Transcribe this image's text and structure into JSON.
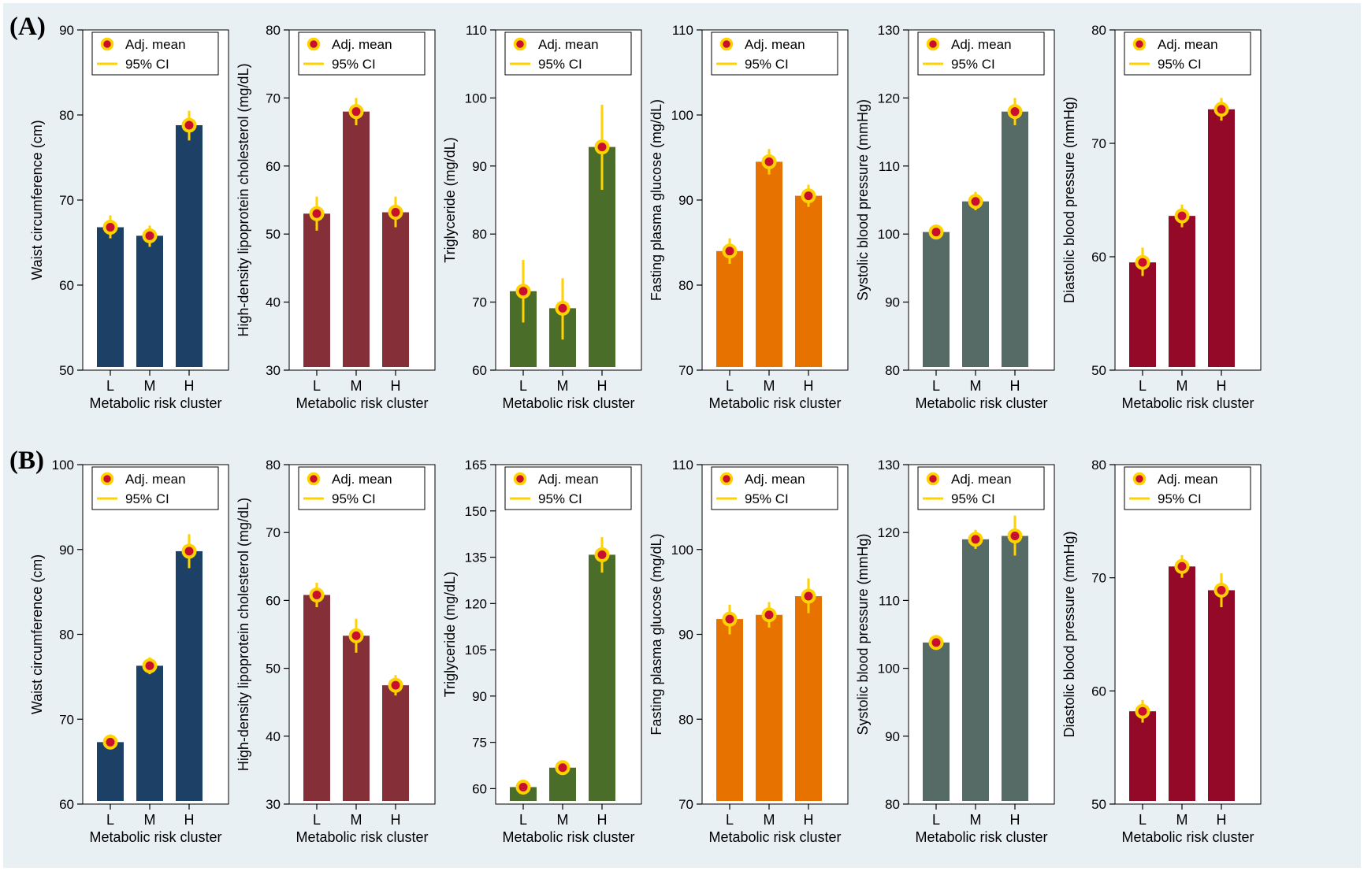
{
  "figure": {
    "colors": {
      "background": "#e9f0f3",
      "plot_background": "#ffffff",
      "ci_line": "#ffd200",
      "marker_fill": "#c8102e",
      "marker_ring": "#ffd200"
    }
  },
  "rows": [
    {
      "label": "(A)",
      "panels": [
        {
          "chart_data": {
            "type": "bar",
            "ylabel": "Waist circumference (cm)",
            "xlabel": "Metabolic risk cluster",
            "categories": [
              "L",
              "M",
              "H"
            ],
            "ylim": [
              50,
              90
            ],
            "yticks": [
              50,
              60,
              70,
              80,
              90
            ],
            "values": [
              66.8,
              65.8,
              78.8
            ],
            "ci_low": [
              65.5,
              64.5,
              77.0
            ],
            "ci_high": [
              68.2,
              67.0,
              80.5
            ],
            "color": "#1c4066",
            "legend": [
              "Adj. mean",
              "95% CI"
            ],
            "legend_position": "top-right",
            "grid": false
          }
        },
        {
          "chart_data": {
            "type": "bar",
            "ylabel": "High-density lipoprotein cholesterol (mg/dL)",
            "xlabel": "Metabolic risk cluster",
            "categories": [
              "L",
              "M",
              "H"
            ],
            "ylim": [
              30,
              80
            ],
            "yticks": [
              30,
              40,
              50,
              60,
              70,
              80
            ],
            "values": [
              53.0,
              68.0,
              53.2
            ],
            "ci_low": [
              50.5,
              66.0,
              51.0
            ],
            "ci_high": [
              55.5,
              70.0,
              55.5
            ],
            "color": "#852f38",
            "legend": [
              "Adj. mean",
              "95% CI"
            ],
            "legend_position": "top-right",
            "grid": false
          }
        },
        {
          "chart_data": {
            "type": "bar",
            "ylabel": "Triglyceride (mg/dL)",
            "xlabel": "Metabolic risk cluster",
            "categories": [
              "L",
              "M",
              "H"
            ],
            "ylim": [
              60,
              110
            ],
            "yticks": [
              60,
              70,
              80,
              90,
              100,
              110
            ],
            "values": [
              71.6,
              69.1,
              92.8
            ],
            "ci_low": [
              67.0,
              64.5,
              86.5
            ],
            "ci_high": [
              76.2,
              73.5,
              99.0
            ],
            "color": "#4b6d2a",
            "legend": [
              "Adj. mean",
              "95% CI"
            ],
            "legend_position": "top-right",
            "grid": false
          }
        },
        {
          "chart_data": {
            "type": "bar",
            "ylabel": "Fasting plasma glucose (mg/dL)",
            "xlabel": "Metabolic risk cluster",
            "categories": [
              "L",
              "M",
              "H"
            ],
            "ylim": [
              70,
              110
            ],
            "yticks": [
              70,
              80,
              90,
              100,
              110
            ],
            "values": [
              84.0,
              94.5,
              90.5
            ],
            "ci_low": [
              82.5,
              93.0,
              89.2
            ],
            "ci_high": [
              85.5,
              96.0,
              91.8
            ],
            "color": "#e87200",
            "legend": [
              "Adj. mean",
              "95% CI"
            ],
            "legend_position": "top-right",
            "grid": false
          }
        },
        {
          "chart_data": {
            "type": "bar",
            "ylabel": "Systolic blood pressure (mmHg)",
            "xlabel": "Metabolic risk cluster",
            "categories": [
              "L",
              "M",
              "H"
            ],
            "ylim": [
              80,
              130
            ],
            "yticks": [
              80,
              90,
              100,
              110,
              120,
              130
            ],
            "values": [
              100.3,
              104.8,
              118.0
            ],
            "ci_low": [
              99.3,
              103.5,
              116.0
            ],
            "ci_high": [
              101.3,
              106.2,
              120.0
            ],
            "color": "#566b66",
            "legend": [
              "Adj. mean",
              "95% CI"
            ],
            "legend_position": "top-right",
            "grid": false
          }
        },
        {
          "chart_data": {
            "type": "bar",
            "ylabel": "Diastolic blood pressure (mmHg)",
            "xlabel": "Metabolic risk cluster",
            "categories": [
              "L",
              "M",
              "H"
            ],
            "ylim": [
              50,
              80
            ],
            "yticks": [
              50,
              60,
              70,
              80
            ],
            "values": [
              59.5,
              63.6,
              73.0
            ],
            "ci_low": [
              58.3,
              62.6,
              72.0
            ],
            "ci_high": [
              60.8,
              64.6,
              74.0
            ],
            "color": "#940828",
            "legend": [
              "Adj. mean",
              "95% CI"
            ],
            "legend_position": "top-right",
            "grid": false
          }
        }
      ]
    },
    {
      "label": "(B)",
      "panels": [
        {
          "chart_data": {
            "type": "bar",
            "ylabel": "Waist circumference (cm)",
            "xlabel": "Metabolic risk cluster",
            "categories": [
              "L",
              "M",
              "H"
            ],
            "ylim": [
              60,
              100
            ],
            "yticks": [
              60,
              70,
              80,
              90,
              100
            ],
            "values": [
              67.3,
              76.3,
              89.8
            ],
            "ci_low": [
              66.5,
              75.3,
              87.8
            ],
            "ci_high": [
              68.2,
              77.3,
              91.8
            ],
            "color": "#1c4066",
            "legend": [
              "Adj. mean",
              "95% CI"
            ],
            "legend_position": "top-right",
            "grid": false
          }
        },
        {
          "chart_data": {
            "type": "bar",
            "ylabel": "High-density lipoprotein cholesterol (mg/dL)",
            "xlabel": "Metabolic risk cluster",
            "categories": [
              "L",
              "M",
              "H"
            ],
            "ylim": [
              30,
              80
            ],
            "yticks": [
              30,
              40,
              50,
              60,
              70,
              80
            ],
            "values": [
              60.8,
              54.8,
              47.5
            ],
            "ci_low": [
              59.0,
              52.3,
              46.0
            ],
            "ci_high": [
              62.6,
              57.3,
              49.0
            ],
            "color": "#852f38",
            "legend": [
              "Adj. mean",
              "95% CI"
            ],
            "legend_position": "top-right",
            "grid": false
          }
        },
        {
          "chart_data": {
            "type": "bar",
            "ylabel": "Triglyceride (mg/dL)",
            "xlabel": "Metabolic risk cluster",
            "categories": [
              "L",
              "M",
              "H"
            ],
            "ylim": [
              55,
              165
            ],
            "yticks": [
              60,
              75,
              90,
              105,
              120,
              135,
              150,
              165
            ],
            "values": [
              60.5,
              66.8,
              135.8
            ],
            "ci_low": [
              58.5,
              65.3,
              130.0
            ],
            "ci_high": [
              62.5,
              68.5,
              141.5
            ],
            "color": "#4b6d2a",
            "legend": [
              "Adj. mean",
              "95% CI"
            ],
            "legend_position": "top-right",
            "grid": false
          }
        },
        {
          "chart_data": {
            "type": "bar",
            "ylabel": "Fasting plasma glucose (mg/dL)",
            "xlabel": "Metabolic risk cluster",
            "categories": [
              "L",
              "M",
              "H"
            ],
            "ylim": [
              70,
              110
            ],
            "yticks": [
              70,
              80,
              90,
              100,
              110
            ],
            "values": [
              91.8,
              92.3,
              94.5
            ],
            "ci_low": [
              90.0,
              90.8,
              92.5
            ],
            "ci_high": [
              93.5,
              93.8,
              96.6
            ],
            "color": "#e87200",
            "legend": [
              "Adj. mean",
              "95% CI"
            ],
            "legend_position": "top-right",
            "grid": false
          }
        },
        {
          "chart_data": {
            "type": "bar",
            "ylabel": "Systolic blood pressure (mmHg)",
            "xlabel": "Metabolic risk cluster",
            "categories": [
              "L",
              "M",
              "H"
            ],
            "ylim": [
              80,
              130
            ],
            "yticks": [
              80,
              90,
              100,
              110,
              120,
              130
            ],
            "values": [
              103.8,
              119.0,
              119.5
            ],
            "ci_low": [
              102.8,
              117.6,
              116.6
            ],
            "ci_high": [
              104.8,
              120.4,
              122.5
            ],
            "color": "#566b66",
            "legend": [
              "Adj. mean",
              "95% CI"
            ],
            "legend_position": "top-right",
            "grid": false
          }
        },
        {
          "chart_data": {
            "type": "bar",
            "ylabel": "Diastolic blood pressure (mmHg)",
            "xlabel": "Metabolic risk cluster",
            "categories": [
              "L",
              "M",
              "H"
            ],
            "ylim": [
              50,
              80
            ],
            "yticks": [
              50,
              60,
              70,
              80
            ],
            "values": [
              58.2,
              71.0,
              68.9
            ],
            "ci_low": [
              57.2,
              70.0,
              67.4
            ],
            "ci_high": [
              59.2,
              72.0,
              70.4
            ],
            "color": "#940828",
            "legend": [
              "Adj. mean",
              "95% CI"
            ],
            "legend_position": "top-right",
            "grid": false
          }
        }
      ]
    }
  ]
}
